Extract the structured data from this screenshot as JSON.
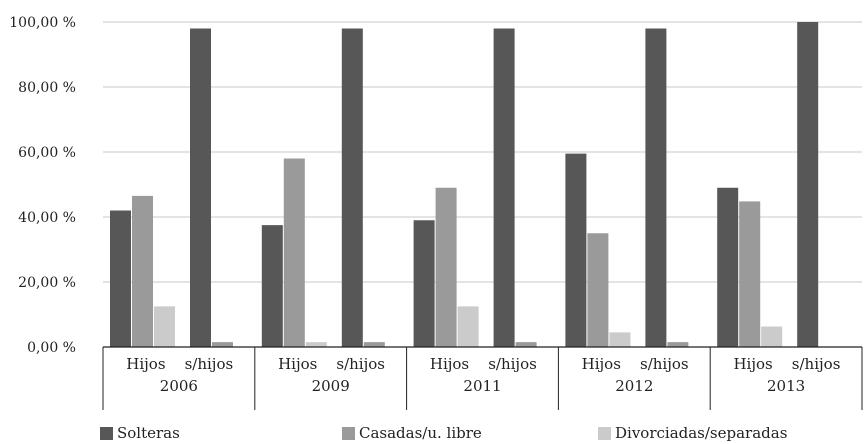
{
  "chart_data": {
    "type": "bar",
    "ylim": [
      0,
      100
    ],
    "yticks": [
      "0,00 %",
      "20,00 %",
      "40,00 %",
      "60,00 %",
      "80,00 %",
      "100,00 %"
    ],
    "grid": true,
    "legend_position": "bottom",
    "groups": [
      {
        "year": "2006",
        "subcategories": [
          "Hijos",
          "s/hijos"
        ]
      },
      {
        "year": "2009",
        "subcategories": [
          "Hijos",
          "s/hijos"
        ]
      },
      {
        "year": "2011",
        "subcategories": [
          "Hijos",
          "s/hijos"
        ]
      },
      {
        "year": "2012",
        "subcategories": [
          "Hijos",
          "s/hijos"
        ]
      },
      {
        "year": "2013",
        "subcategories": [
          "Hijos",
          "s/hijos"
        ]
      }
    ],
    "series": [
      {
        "name": "Solteras",
        "color": "#575757",
        "values": [
          42,
          98,
          37.5,
          98,
          39,
          98,
          59.5,
          98,
          49,
          100
        ]
      },
      {
        "name": "Casadas/u. libre",
        "color": "#9a9a9a",
        "values": [
          46.5,
          1.5,
          58,
          1.5,
          49,
          1.5,
          35,
          1.5,
          44.8,
          0
        ]
      },
      {
        "name": "Divorciadas/separadas",
        "color": "#cbcbcb",
        "values": [
          12.5,
          0,
          1.5,
          0,
          12.5,
          0,
          4.5,
          0,
          6.3,
          0
        ]
      }
    ]
  }
}
